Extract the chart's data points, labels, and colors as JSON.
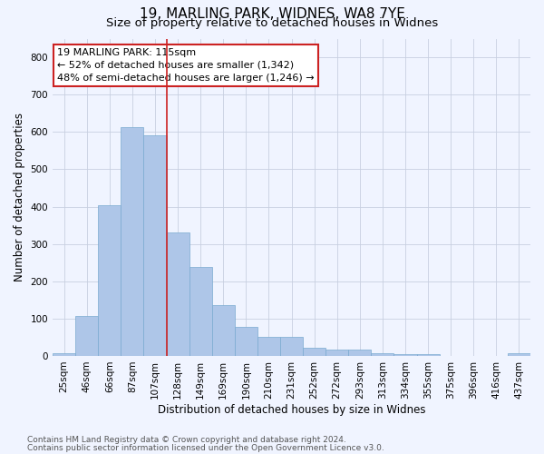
{
  "title": "19, MARLING PARK, WIDNES, WA8 7YE",
  "subtitle": "Size of property relative to detached houses in Widnes",
  "xlabel": "Distribution of detached houses by size in Widnes",
  "ylabel": "Number of detached properties",
  "footnote1": "Contains HM Land Registry data © Crown copyright and database right 2024.",
  "footnote2": "Contains public sector information licensed under the Open Government Licence v3.0.",
  "categories": [
    "25sqm",
    "46sqm",
    "66sqm",
    "87sqm",
    "107sqm",
    "128sqm",
    "149sqm",
    "169sqm",
    "190sqm",
    "210sqm",
    "231sqm",
    "252sqm",
    "272sqm",
    "293sqm",
    "313sqm",
    "334sqm",
    "355sqm",
    "375sqm",
    "396sqm",
    "416sqm",
    "437sqm"
  ],
  "values": [
    7,
    106,
    403,
    614,
    592,
    330,
    238,
    137,
    77,
    51,
    51,
    23,
    17,
    16,
    7,
    5,
    4,
    0,
    0,
    0,
    8
  ],
  "bar_color": "#aec6e8",
  "bar_edge_color": "#7aaad0",
  "vline_x": 4.5,
  "vline_color": "#cc2222",
  "annotation_line1": "19 MARLING PARK: 115sqm",
  "annotation_line2": "← 52% of detached houses are smaller (1,342)",
  "annotation_line3": "48% of semi-detached houses are larger (1,246) →",
  "annotation_box_color": "#ffffff",
  "annotation_border_color": "#cc2222",
  "ylim": [
    0,
    850
  ],
  "yticks": [
    0,
    100,
    200,
    300,
    400,
    500,
    600,
    700,
    800
  ],
  "bg_color": "#f0f4ff",
  "grid_color": "#c8d0e0",
  "title_fontsize": 11,
  "subtitle_fontsize": 9.5,
  "axis_label_fontsize": 8.5,
  "tick_fontsize": 7.5,
  "annotation_fontsize": 8,
  "footnote_fontsize": 6.5
}
